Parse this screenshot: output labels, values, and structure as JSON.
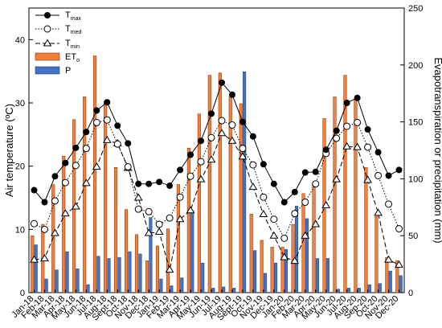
{
  "chart_data": {
    "type": "bar",
    "categories": [
      "Jan-18",
      "Feb-18",
      "Mar-18",
      "Apr-18",
      "May-18",
      "Jun-18",
      "Jul-18",
      "Aug-18",
      "Sept-18",
      "Oct-18",
      "Nov-18",
      "Dec-18",
      "Jan-19",
      "Feb-19",
      "Mar-19",
      "Apr-19",
      "May-19",
      "Jun-19",
      "Jul-19",
      "Aug-19",
      "Sept-19",
      "Oct-19",
      "Nov-19",
      "Dec-19",
      "Jan-20",
      "Feb-20",
      "Mar-20",
      "Apr-20",
      "May-20",
      "Jun-20",
      "Jul-20",
      "Aug-20",
      "Sep-20",
      "Oct-20",
      "Nov-20",
      "Dec-20"
    ],
    "ylabel": "Air temperature (ºC)",
    "y2label": "Evapotranspiration or precipitation (mm)",
    "ylim": [
      0,
      45
    ],
    "yticks": [
      0,
      10,
      20,
      30,
      40
    ],
    "y2lim": [
      0,
      250
    ],
    "y2ticks": [
      0,
      50,
      100,
      150,
      200,
      250
    ],
    "legend_position": "top-left",
    "legend": [
      {
        "main": "T",
        "sub": "max"
      },
      {
        "main": "T",
        "sub": "med"
      },
      {
        "main": "T",
        "sub": "min"
      },
      {
        "main": "ET",
        "sub": "o"
      },
      {
        "main": "P",
        "sub": ""
      }
    ],
    "series": [
      {
        "name": "Tmax",
        "axis": "left",
        "style": "line-solid-filled-circle",
        "values": [
          16.2,
          14.3,
          18.4,
          20.5,
          22.9,
          25.4,
          28.8,
          30.1,
          26.4,
          23.6,
          17.2,
          17.2,
          17.5,
          16.9,
          19.4,
          21.8,
          24.0,
          28.3,
          33.2,
          31.3,
          27.0,
          24.7,
          20.3,
          17.2,
          14.3,
          15.9,
          19.0,
          19.1,
          22.6,
          25.6,
          30.0,
          30.8,
          25.8,
          22.2,
          18.5,
          19.4
        ]
      },
      {
        "name": "Tmed",
        "axis": "left",
        "style": "line-dotted-open-circle",
        "values": [
          10.9,
          10.0,
          14.5,
          17.4,
          20.1,
          22.8,
          26.9,
          27.3,
          23.5,
          19.9,
          13.2,
          12.8,
          10.8,
          11.8,
          15.1,
          18.4,
          20.7,
          24.5,
          27.2,
          26.5,
          22.8,
          20.2,
          15.1,
          11.6,
          8.6,
          12.5,
          14.3,
          17.2,
          22.0,
          24.4,
          26.3,
          26.9,
          23.0,
          18.5,
          14.0,
          10.1
        ]
      },
      {
        "name": "Tmin",
        "axis": "left",
        "style": "line-dashed-open-triangle",
        "values": [
          5.2,
          5.4,
          9.4,
          12.5,
          13.6,
          17.3,
          19.9,
          24.1,
          23.6,
          19.7,
          15.0,
          9.4,
          9.6,
          3.6,
          11.6,
          13.0,
          17.9,
          21.0,
          25.2,
          24.0,
          21.5,
          16.7,
          12.4,
          9.0,
          5.6,
          5.0,
          9.0,
          10.8,
          13.8,
          17.9,
          23.1,
          23.0,
          17.8,
          12.6,
          5.2,
          4.4
        ]
      },
      {
        "name": "ETo",
        "axis": "right",
        "style": "bar-orange",
        "values": [
          50,
          60,
          95,
          120,
          152,
          172,
          208,
          168,
          110,
          73,
          51,
          28,
          41,
          56,
          95,
          127,
          157,
          191,
          193,
          172,
          166,
          69,
          46,
          40,
          40,
          60,
          87,
          96,
          153,
          172,
          191,
          170,
          110,
          67,
          31,
          28
        ]
      },
      {
        "name": "P",
        "axis": "right",
        "style": "bar-blue",
        "values": [
          42,
          12,
          20,
          36,
          21,
          7,
          32,
          30,
          31,
          36,
          34,
          66,
          12,
          6,
          13,
          72,
          26,
          4,
          5,
          4,
          194,
          37,
          17,
          26,
          38,
          76,
          65,
          30,
          30,
          3,
          4,
          4,
          7,
          8,
          19,
          15
        ]
      }
    ]
  }
}
